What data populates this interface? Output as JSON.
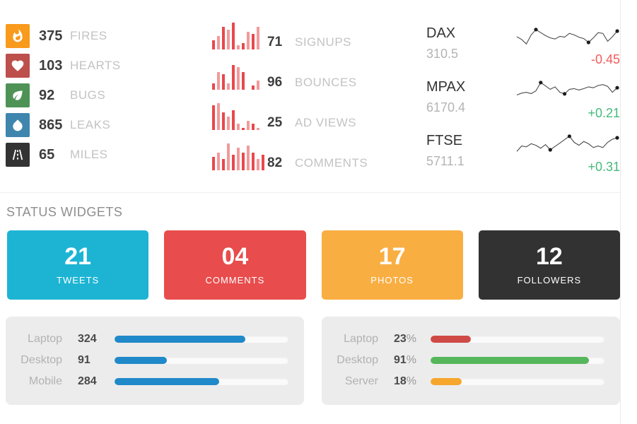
{
  "colors": {
    "positive": "#46b97c",
    "negative": "#f25b5b",
    "bar_red": "#e8494d",
    "bar_red_light": "#f29a9c",
    "sparkline_stroke": "#4a4a4a",
    "sparkline_dot": "#1c1c1c"
  },
  "stats": [
    {
      "icon": "fire-icon",
      "color": "#f89a1c",
      "value": "375",
      "label": "FIRES"
    },
    {
      "icon": "heart-icon",
      "color": "#bd4f4c",
      "value": "103",
      "label": "HEARTS"
    },
    {
      "icon": "leaf-icon",
      "color": "#4e9355",
      "value": "92",
      "label": "BUGS"
    },
    {
      "icon": "droplet-icon",
      "color": "#3e86ae",
      "value": "865",
      "label": "LEAKS"
    },
    {
      "icon": "road-icon",
      "color": "#333333",
      "value": "65",
      "label": "MILES"
    }
  ],
  "activity": [
    {
      "label": "SIGNUPS",
      "value": "71",
      "bars": [
        4,
        6,
        10,
        9,
        12,
        2,
        3,
        8,
        7,
        10
      ]
    },
    {
      "label": "BOUNCES",
      "value": "96",
      "bars": [
        3,
        8,
        7,
        3,
        11,
        10,
        8,
        0,
        2,
        4
      ]
    },
    {
      "label": "AD VIEWS",
      "value": "25",
      "bars": [
        11,
        12,
        8,
        6,
        9,
        3,
        1,
        4,
        3,
        1
      ]
    },
    {
      "label": "COMMENTS",
      "value": "82",
      "bars": [
        6,
        8,
        5,
        12,
        7,
        10,
        8,
        11,
        8,
        5,
        7
      ]
    }
  ],
  "stocks": [
    {
      "name": "DAX",
      "value": "310.5",
      "change": "-0.45",
      "direction": "down",
      "line": [
        50,
        38,
        18,
        58,
        82,
        68,
        55,
        45,
        40,
        52,
        48,
        65,
        58,
        48,
        42,
        25,
        45,
        68,
        65,
        30,
        50,
        75
      ],
      "dots": [
        4,
        15,
        21
      ]
    },
    {
      "name": "MPAX",
      "value": "6170.4",
      "change": "+0.21",
      "direction": "up",
      "line": [
        30,
        38,
        42,
        36,
        48,
        85,
        70,
        55,
        66,
        42,
        35,
        55,
        58,
        52,
        58,
        66,
        62,
        72,
        76,
        68,
        42,
        62
      ],
      "dots": [
        5,
        10,
        21
      ]
    },
    {
      "name": "FTSE",
      "value": "5711.1",
      "change": "+0.31",
      "direction": "up",
      "line": [
        18,
        42,
        38,
        52,
        45,
        32,
        48,
        25,
        40,
        55,
        70,
        85,
        58,
        45,
        62,
        52,
        35,
        42,
        35,
        58,
        72,
        78
      ],
      "dots": [
        7,
        11,
        21
      ]
    }
  ],
  "status_widgets": {
    "title": "STATUS WIDGETS",
    "widgets": [
      {
        "value": "21",
        "label": "TWEETS",
        "color": "#1db4d4"
      },
      {
        "value": "04",
        "label": "COMMENTS",
        "color": "#e84c4c"
      },
      {
        "value": "17",
        "label": "PHOTOS",
        "color": "#f9ae42"
      },
      {
        "value": "12",
        "label": "FOLLOWERS",
        "color": "#323232"
      }
    ]
  },
  "progress_panels": [
    {
      "name": "device-counts",
      "rows": [
        {
          "label": "Laptop",
          "value": "324",
          "suffix": "",
          "percent": 75,
          "color": "#2089c9"
        },
        {
          "label": "Desktop",
          "value": "91",
          "suffix": "",
          "percent": 30,
          "color": "#2089c9"
        },
        {
          "label": "Mobile",
          "value": "284",
          "suffix": "",
          "percent": 60,
          "color": "#2089c9"
        }
      ]
    },
    {
      "name": "usage-percentages",
      "rows": [
        {
          "label": "Laptop",
          "value": "23",
          "suffix": "%",
          "percent": 23,
          "color": "#cf4a46"
        },
        {
          "label": "Desktop",
          "value": "91",
          "suffix": "%",
          "percent": 91,
          "color": "#56b65c"
        },
        {
          "label": "Server",
          "value": "18",
          "suffix": "%",
          "percent": 18,
          "color": "#f5a62b"
        }
      ]
    }
  ]
}
